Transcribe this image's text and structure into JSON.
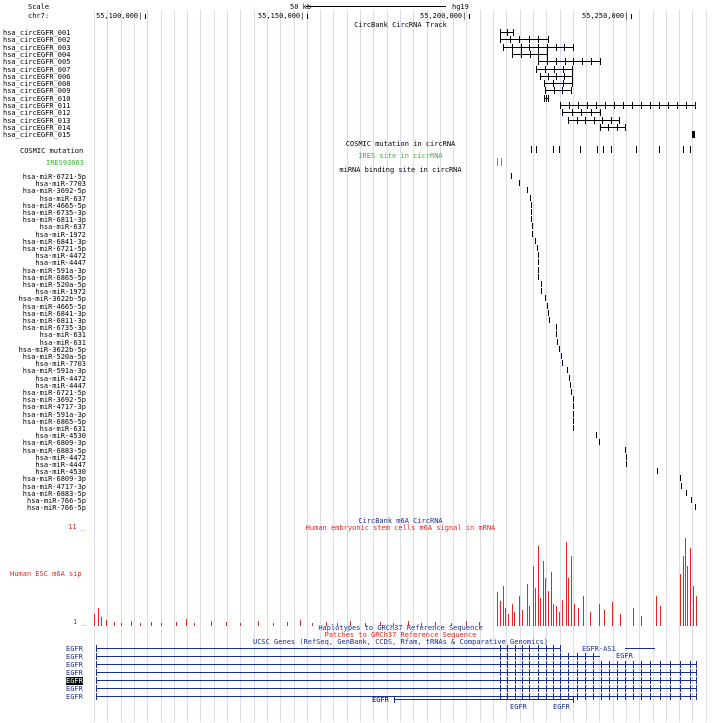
{
  "ruler": {
    "scale_label": "Scale",
    "scale_value": "50 kb",
    "assembly": "hg19",
    "chrom_label": "chr7:",
    "positions": [
      "55,100,000|",
      "55,150,000|",
      "55,200,000|",
      "55,250,000|"
    ]
  },
  "circ_track": {
    "title": "CircBank CircRNA Track",
    "items": [
      "hsa_circEGFR_001",
      "hsa_circEGFR_002",
      "hsa_circEGFR_003",
      "hsa_circEGFR_004",
      "hsa_circEGFR_005",
      "hsa_circEGFR_007",
      "hsa_circEGFR_006",
      "hsa_circEGFR_008",
      "hsa_circEGFR_009",
      "hsa_circEGFR_010",
      "hsa_circEGFR_011",
      "hsa_circEGFR_012",
      "hsa_circEGFR_013",
      "hsa_circEGFR_014",
      "hsa_circEGFR_015"
    ]
  },
  "cosmic_track": {
    "title": "COSMIC mutation in circRNA",
    "label": "COSMIC mutation"
  },
  "ires_track": {
    "title": "IRES site in cicrRNA",
    "label": "IRES93063"
  },
  "mirna_track": {
    "title": "miRNA binding site in circRNA",
    "items": [
      "hsa-miR-6721-5p",
      "hsa-miR-7703",
      "hsa-miR-3692-5p",
      "hsa-miR-637",
      "hsa-miR-4665-5p",
      "hsa-miR-6735-3p",
      "hsa-miR-6811-3p",
      "hsa-miR-637",
      "hsa-miR-1972",
      "hsa-miR-6841-3p",
      "hsa-miR-6721-5p",
      "hsa-miR-4472",
      "hsa-miR-4447",
      "hsa-miR-591a-3p",
      "hsa-miR-6865-5p",
      "hsa-miR-520a-5p",
      "hsa-miR-1972",
      "hsa-miR-3622b-5p",
      "hsa-miR-4665-5p",
      "hsa-miR-6841-3p",
      "hsa-miR-6811-3p",
      "hsa-miR-6735-3p",
      "hsa-miR-631",
      "hsa-miR-631",
      "hsa-miR-3622b-5p",
      "hsa-miR-520a-5p",
      "hsa-miR-7703",
      "hsa-miR-591a-3p",
      "hsa-miR-4472",
      "hsa-miR-4447",
      "hsa-miR-6721-5p",
      "hsa-miR-3692-5p",
      "hsa-miR-4717-3p",
      "hsa-miR-591a-3p",
      "hsa-miR-6865-5p",
      "hsa-miR-631",
      "hsa-miR-4530",
      "hsa-miR-6809-3p",
      "hsa-miR-6883-5p",
      "hsa-miR-4472",
      "hsa-miR-4447",
      "hsa-miR-4530",
      "hsa-miR-6809-3p",
      "hsa-miR-4717-3p",
      "hsa-miR-6883-5p",
      "hsa-miR-766-5p",
      "hsa-miR-766-5p"
    ]
  },
  "m6a_track": {
    "title": "CircBank m6A CircRNA",
    "subtitle": "Human embryonic stem cells m6A signal in mRNA",
    "label": "Human ESC m6A sip",
    "ymax": "11 _",
    "ymin": "1 _"
  },
  "gene_tracks": {
    "haplotypes": "Haplotypes to GRCh37 Reference Sequence",
    "patches": "Patches to GRCh37 Reference Sequence",
    "ucsc": "UCSC Genes (RefSeq, GenBank, CCDS, Rfam, tRNAs & Comparative Genomics)",
    "gene_labels": [
      "EGFR",
      "EGFR",
      "EGFR",
      "EGFR",
      "EGFR",
      "EGFR",
      "EGFR"
    ],
    "inline_labels": [
      "EGFR-AS1",
      "EGFR",
      "EGFR",
      "EGFR",
      "EGFR"
    ]
  },
  "colors": {
    "cosmic_title": "#000000",
    "ires": "#3cb43c",
    "m6a": "#e0281e",
    "genes": "#1a2e96",
    "grid": "#dcdce8"
  }
}
